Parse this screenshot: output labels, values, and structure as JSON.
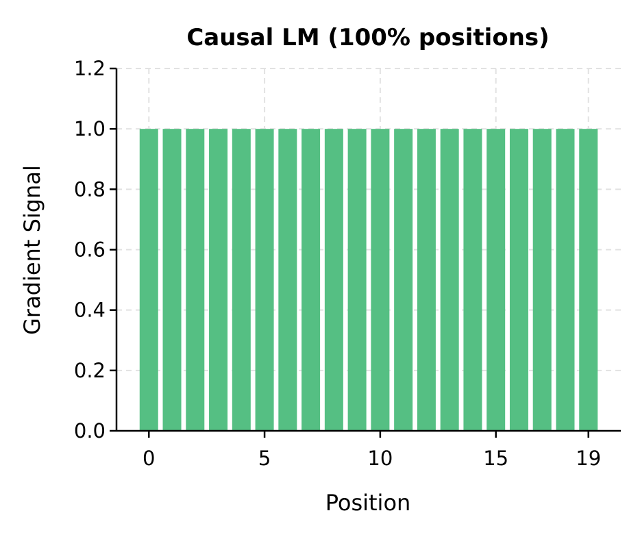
{
  "chart_data": {
    "type": "bar",
    "title": "Causal LM (100% positions)",
    "xlabel": "Position",
    "ylabel": "Gradient Signal",
    "x": [
      0,
      1,
      2,
      3,
      4,
      5,
      6,
      7,
      8,
      9,
      10,
      11,
      12,
      13,
      14,
      15,
      16,
      17,
      18,
      19
    ],
    "values": [
      1.0,
      1.0,
      1.0,
      1.0,
      1.0,
      1.0,
      1.0,
      1.0,
      1.0,
      1.0,
      1.0,
      1.0,
      1.0,
      1.0,
      1.0,
      1.0,
      1.0,
      1.0,
      1.0,
      1.0
    ],
    "xticks": [
      0,
      5,
      10,
      15,
      19
    ],
    "yticks": [
      "0.0",
      "0.2",
      "0.4",
      "0.6",
      "0.8",
      "1.0",
      "1.2"
    ],
    "xlim": [
      -1.4,
      20.4
    ],
    "ylim": [
      0,
      1.2
    ],
    "bar_width": 0.8,
    "bar_color": "#55bf83",
    "grid": true,
    "legend": false
  }
}
